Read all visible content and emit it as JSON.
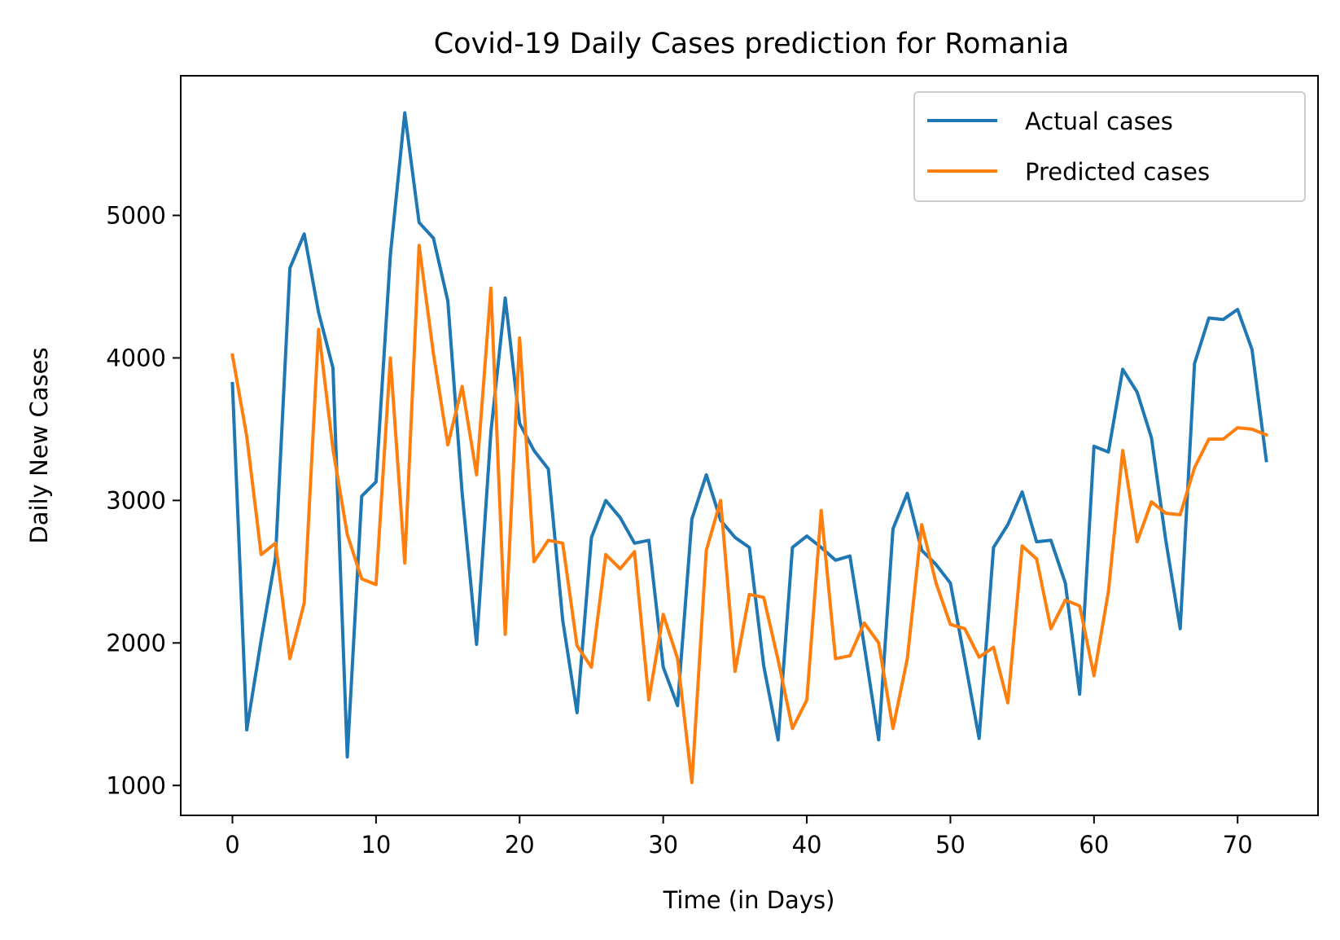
{
  "chart_data": {
    "type": "line",
    "title": "Covid-19 Daily Cases prediction for Romania",
    "xlabel": "Time (in Days)",
    "ylabel": "Daily New Cases",
    "xlim": [
      -3.6,
      75.6
    ],
    "ylim": [
      790,
      5980
    ],
    "xticks": [
      0,
      10,
      20,
      30,
      40,
      50,
      60,
      70
    ],
    "yticks": [
      1000,
      2000,
      3000,
      4000,
      5000
    ],
    "grid": false,
    "legend_position": "top-right",
    "series": [
      {
        "name": "Actual cases",
        "color": "#1f77b4",
        "x": [
          0,
          1,
          2,
          3,
          4,
          5,
          6,
          7,
          8,
          9,
          10,
          11,
          12,
          13,
          14,
          15,
          16,
          17,
          18,
          19,
          20,
          21,
          22,
          23,
          24,
          25,
          26,
          27,
          28,
          29,
          30,
          31,
          32,
          33,
          34,
          35,
          36,
          37,
          38,
          39,
          40,
          41,
          42,
          43,
          44,
          45,
          46,
          47,
          48,
          49,
          50,
          51,
          52,
          53,
          54,
          55,
          56,
          57,
          58,
          59,
          60,
          61,
          62,
          63,
          64,
          65,
          66,
          67,
          68,
          69,
          70,
          71,
          72
        ],
        "values": [
          3820,
          1390,
          2020,
          2600,
          4630,
          4870,
          4320,
          3930,
          1200,
          3030,
          3130,
          4720,
          5720,
          4950,
          4840,
          4400,
          3050,
          1990,
          3480,
          4420,
          3540,
          3350,
          3220,
          2160,
          1510,
          2740,
          3000,
          2880,
          2700,
          2720,
          1830,
          1560,
          2870,
          3180,
          2860,
          2740,
          2670,
          1840,
          1320,
          2670,
          2750,
          2670,
          2580,
          2610,
          1980,
          1320,
          2800,
          3050,
          2650,
          2550,
          2420,
          1880,
          1330,
          2670,
          2830,
          3060,
          2710,
          2720,
          2420,
          1640,
          3380,
          3340,
          3920,
          3760,
          3440,
          2720,
          2100,
          3960,
          4280,
          4270,
          4340,
          4060,
          3280
        ]
      },
      {
        "name": "Predicted cases",
        "color": "#ff7f0e",
        "x": [
          0,
          1,
          2,
          3,
          4,
          5,
          6,
          7,
          8,
          9,
          10,
          11,
          12,
          13,
          14,
          15,
          16,
          17,
          18,
          19,
          20,
          21,
          22,
          23,
          24,
          25,
          26,
          27,
          28,
          29,
          30,
          31,
          32,
          33,
          34,
          35,
          36,
          37,
          38,
          39,
          40,
          41,
          42,
          43,
          44,
          45,
          46,
          47,
          48,
          49,
          50,
          51,
          52,
          53,
          54,
          55,
          56,
          57,
          58,
          59,
          60,
          61,
          62,
          63,
          64,
          65,
          66,
          67,
          68,
          69,
          70,
          71,
          72
        ],
        "values": [
          4020,
          3450,
          2620,
          2700,
          1890,
          2280,
          4200,
          3360,
          2760,
          2450,
          2410,
          4000,
          2560,
          4790,
          4030,
          3390,
          3800,
          3180,
          4490,
          2060,
          4140,
          2570,
          2720,
          2700,
          1980,
          1830,
          2620,
          2520,
          2640,
          1600,
          2200,
          1890,
          1020,
          2650,
          3000,
          1800,
          2340,
          2320,
          1880,
          1400,
          1600,
          2930,
          1890,
          1910,
          2140,
          2000,
          1400,
          1890,
          2830,
          2420,
          2130,
          2100,
          1900,
          1970,
          1580,
          2680,
          2590,
          2100,
          2300,
          2260,
          1770,
          2360,
          3350,
          2710,
          2990,
          2910,
          2900,
          3230,
          3430,
          3430,
          3510,
          3500,
          3460
        ]
      }
    ]
  }
}
